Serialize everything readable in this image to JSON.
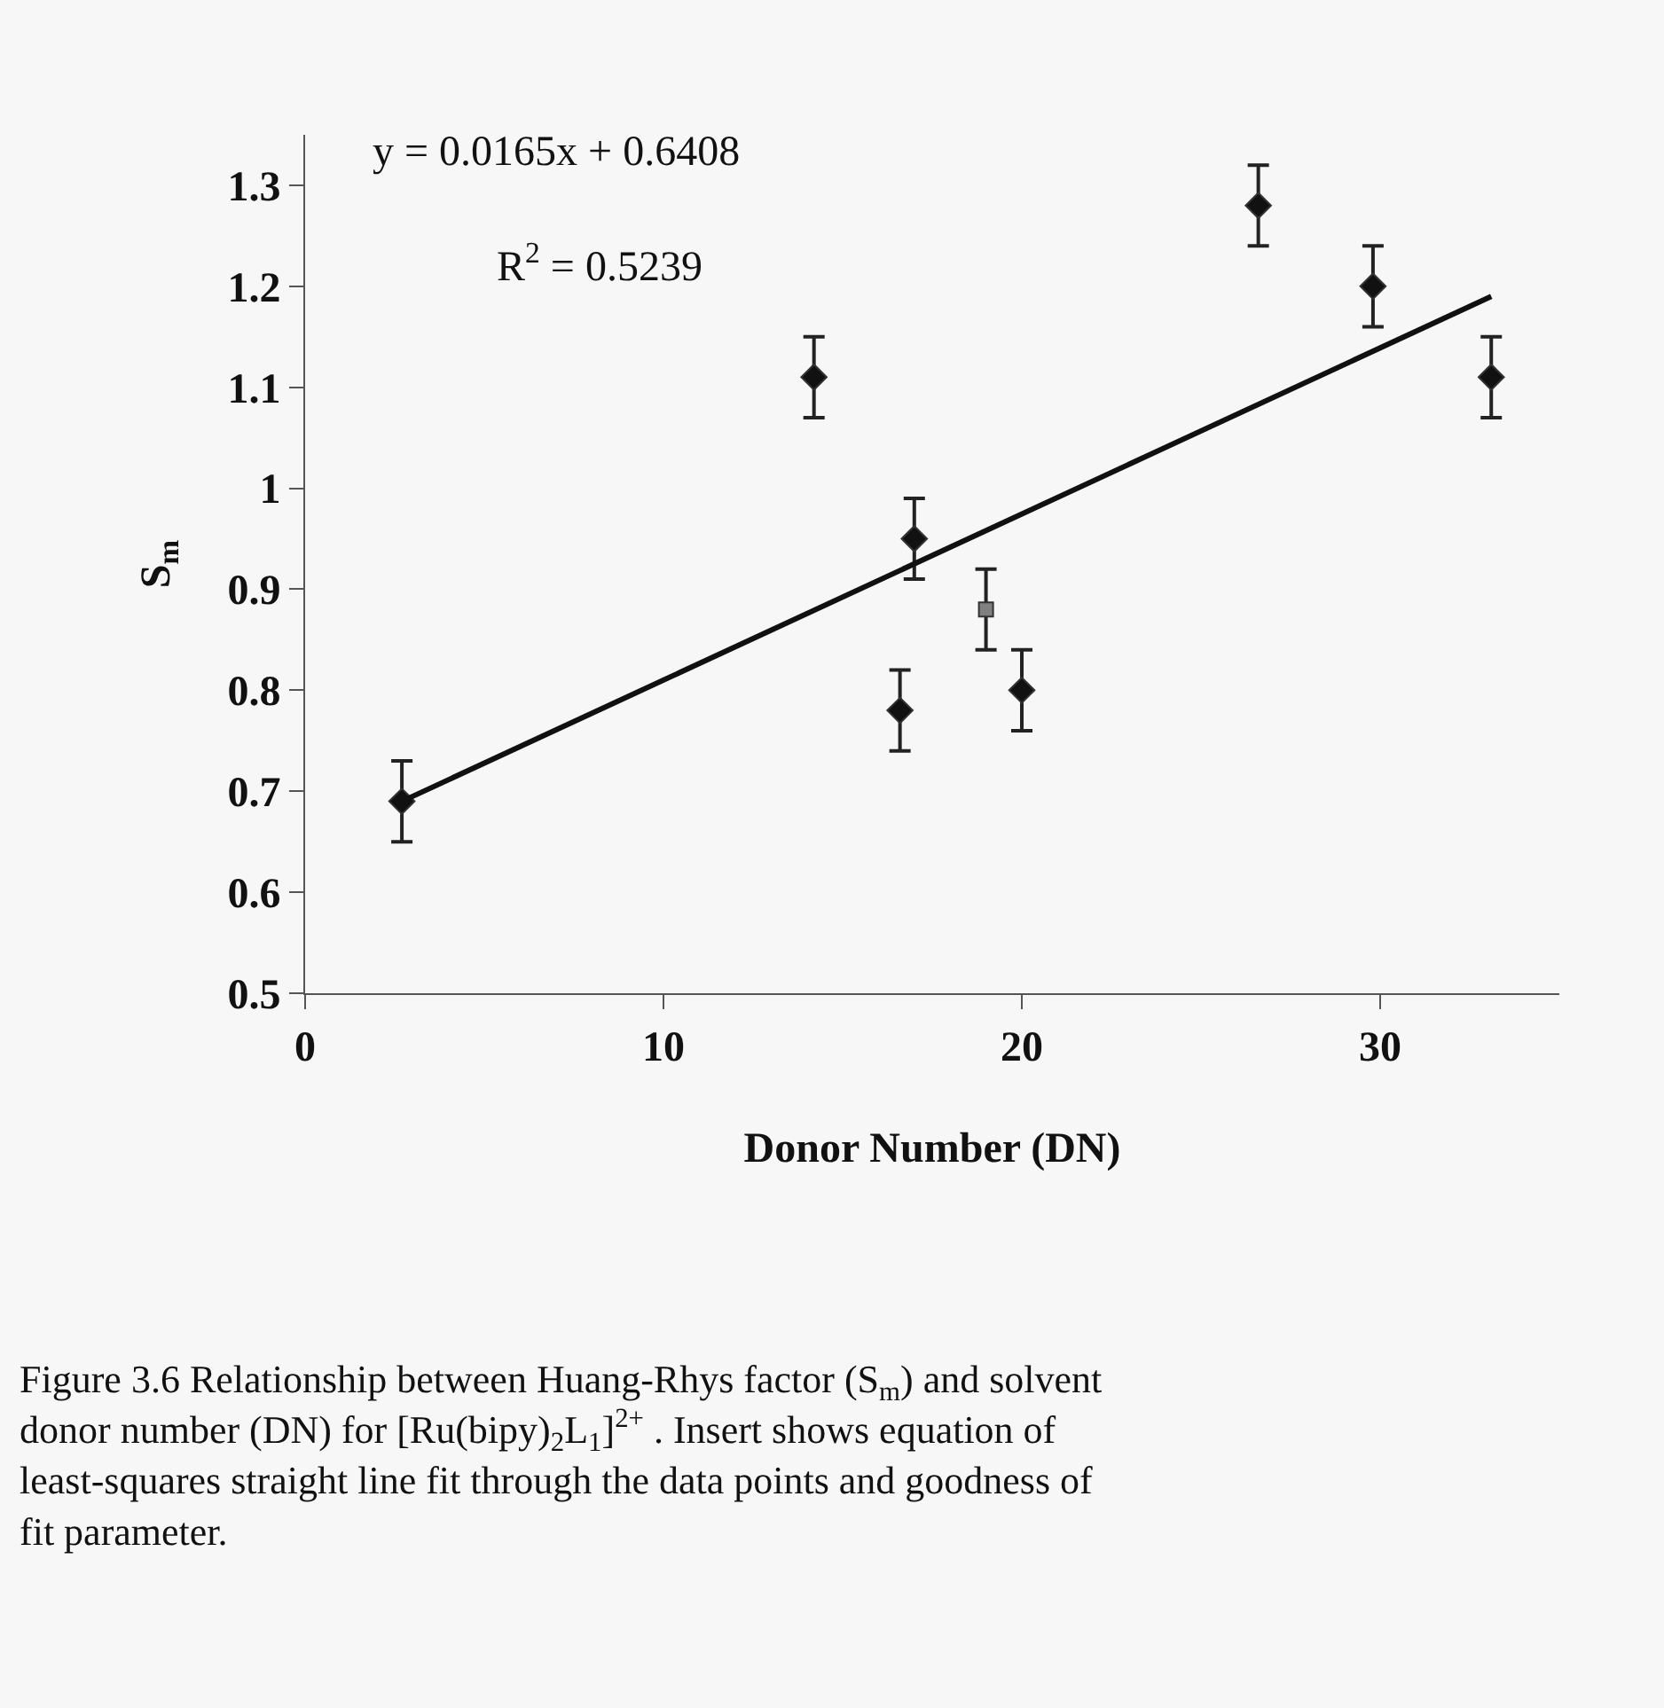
{
  "chart_data": {
    "type": "scatter",
    "xlabel": "Donor Number (DN)",
    "ylabel": "S$_{m}$",
    "xlim": [
      0,
      35
    ],
    "xticks": [
      0,
      10,
      20,
      30
    ],
    "ylim": [
      0.5,
      1.35
    ],
    "yticks": [
      0.5,
      0.6,
      0.7,
      0.8,
      0.9,
      1,
      1.1,
      1.2,
      1.3
    ],
    "grid": false,
    "series": [
      {
        "marker": "diamond",
        "color": "#111111",
        "x": [
          2.7,
          14.2,
          16.6,
          17.0,
          20.0,
          26.6,
          29.8,
          33.1
        ],
        "values": [
          0.69,
          1.11,
          0.78,
          0.95,
          0.8,
          1.28,
          1.2,
          1.11
        ],
        "errors": [
          0.04,
          0.04,
          0.04,
          0.04,
          0.04,
          0.04,
          0.04,
          0.04
        ]
      },
      {
        "marker": "square",
        "color": "#808080",
        "x": [
          19.0
        ],
        "values": [
          0.88
        ],
        "errors": [
          0.04
        ]
      },
      {
        "type": "line",
        "marker": "none",
        "line_style": "solid",
        "color": "#111111",
        "x": [
          2.7,
          33.1
        ],
        "values": [
          0.69,
          1.19
        ]
      }
    ],
    "annotations": [
      "y = 0.0165x + 0.6408",
      "R$^{2}$ = 0.5239",
      "Figure 3.6 Relationship between Huang-Rhys factor (S$_{m}$) and solvent donor number (DN) for [Ru(bipy)$_{2}$L$_{1}$]$^{2+}$ . Insert shows equation of least-squares straight line fit through the data points and goodness of fit parameter."
    ]
  }
}
